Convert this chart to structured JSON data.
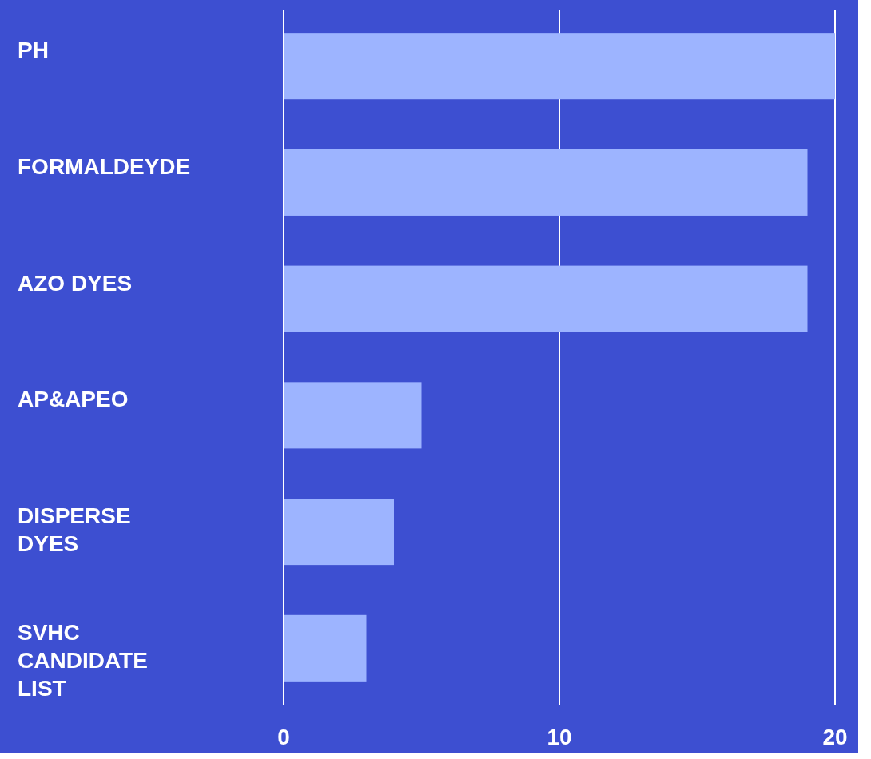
{
  "chart_data": {
    "type": "bar",
    "orientation": "horizontal",
    "categories": [
      "PH",
      "FORMALDEYDE",
      "AZO DYES",
      "AP&APEO",
      "DISPERSE DYES",
      "SVHC CANDIDATE LIST"
    ],
    "values": [
      20,
      19,
      19,
      5,
      4,
      3
    ],
    "color": "#9db4ff",
    "xlim": [
      0,
      20
    ],
    "xticks": [
      0,
      10,
      20
    ],
    "grid": "x"
  }
}
